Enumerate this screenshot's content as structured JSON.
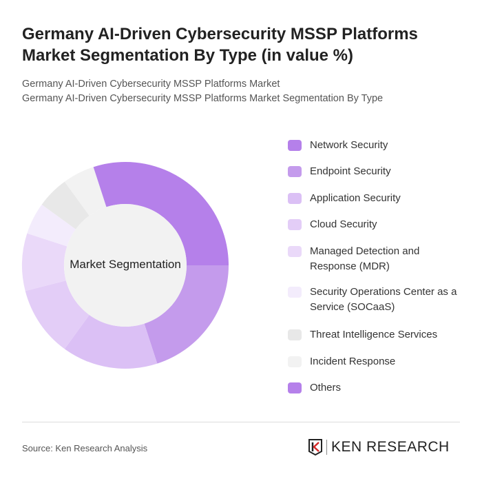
{
  "title": "Germany AI-Driven Cybersecurity MSSP Platforms Market Segmentation By Type (in value %)",
  "subtitle_1": "Germany AI-Driven Cybersecurity MSSP Platforms Market",
  "subtitle_2": "Germany AI-Driven Cybersecurity MSSP Platforms Market Segmentation By Type",
  "chart_data": {
    "type": "pie",
    "variant": "donut",
    "center_label": "Market Segmentation",
    "legend_position": "right",
    "categories": [
      "Network Security",
      "Endpoint Security",
      "Application Security",
      "Cloud Security",
      "Managed Detection and Response (MDR)",
      "Security Operations Center as a Service (SOCaaS)",
      "Threat Intelligence Services",
      "Incident Response",
      "Others"
    ],
    "values": [
      25,
      20,
      15,
      11,
      9,
      5,
      5,
      5,
      5
    ],
    "colors": [
      "#b580ea",
      "#c49bec",
      "#dbc0f5",
      "#e3cdf7",
      "#ead9f9",
      "#f3ecfc",
      "#e8e8e8",
      "#f2f2f2",
      "#b580ea"
    ]
  },
  "footer": {
    "source": "Source: Ken Research Analysis",
    "logo_text": "KEN RESEARCH"
  }
}
